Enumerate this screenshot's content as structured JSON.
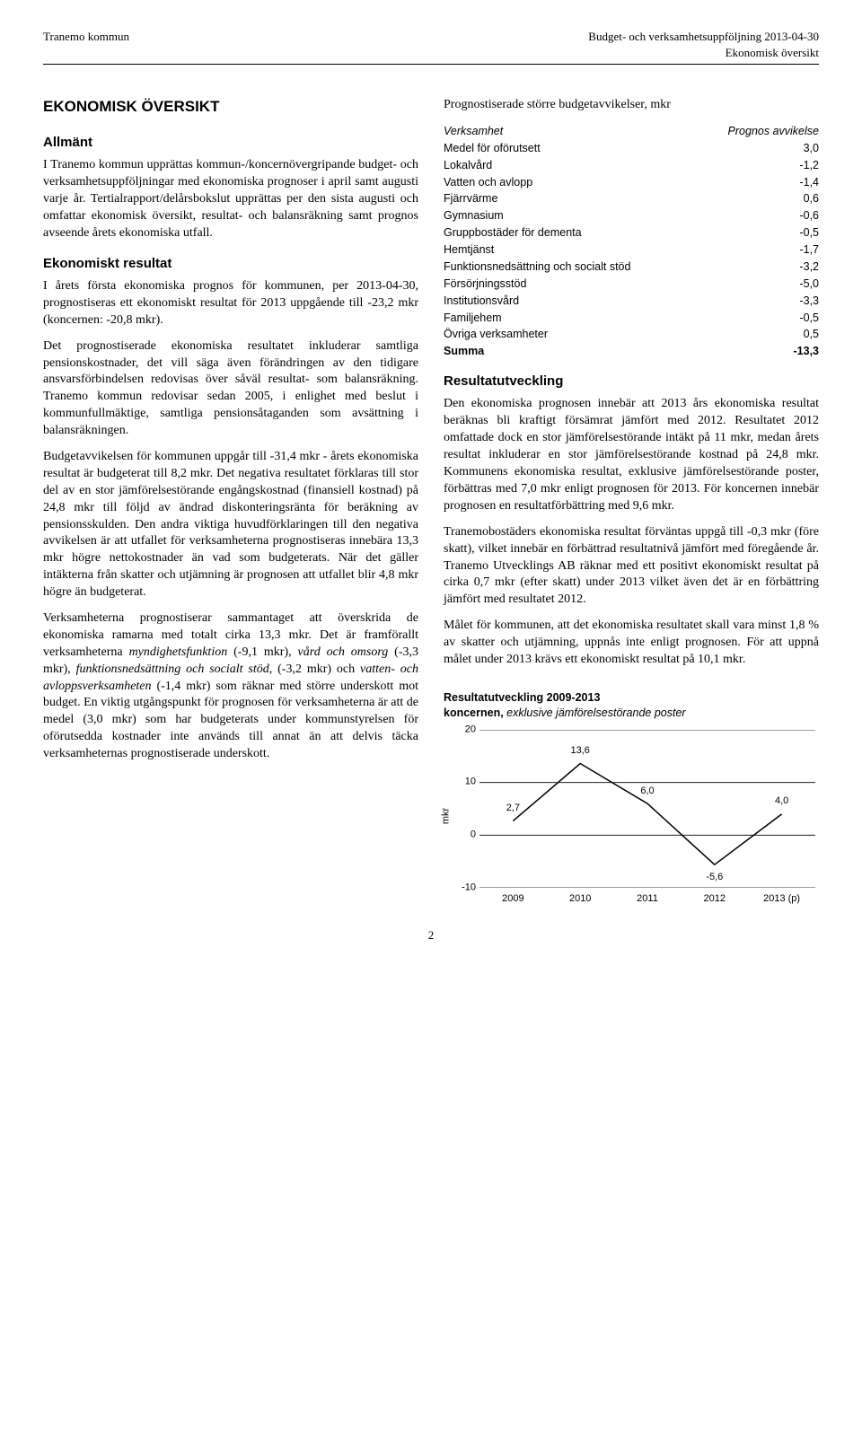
{
  "header": {
    "left": "Tranemo kommun",
    "right_line1": "Budget- och verksamhetsuppföljning 2013-04-30",
    "right_line2": "Ekonomisk översikt"
  },
  "left_col": {
    "h1": "EKONOMISK ÖVERSIKT",
    "h_allmant": "Allmänt",
    "p_allmant": "I Tranemo kommun upprättas kommun-/koncernövergripande budget- och verksamhetsuppföljningar med ekonomiska prognoser i april samt augusti varje år. Tertialrapport/delårsbokslut upprättas per den sista augusti och omfattar ekonomisk översikt, resultat- och balansräkning samt prognos avseende årets ekonomiska utfall.",
    "h_eko": "Ekonomiskt resultat",
    "p_eko1": "I årets första ekonomiska prognos för kommunen, per 2013-04-30, prognostiseras ett ekonomiskt resultat för 2013 uppgående till -23,2 mkr (koncernen: -20,8 mkr).",
    "p_eko2": "Det prognostiserade ekonomiska resultatet inkluderar samtliga pensionskostnader, det vill säga även förändringen av den tidigare ansvarsförbindelsen redovisas över såväl resultat- som balansräkning. Tranemo kommun redovisar sedan 2005, i enlighet med beslut i kommunfullmäktige, samtliga pensionsåtaganden som avsättning i balansräkningen.",
    "p_eko3": "Budgetavvikelsen för kommunen uppgår till -31,4 mkr - årets ekonomiska resultat är budgeterat till 8,2 mkr. Det negativa resultatet förklaras till stor del av en stor jämförelsestörande engångskostnad (finansiell kostnad) på 24,8 mkr till följd av ändrad diskonteringsränta för beräkning av pensionsskulden. Den andra viktiga huvudförklaringen till den negativa avvikelsen är att utfallet för verksamheterna prognostiseras innebära 13,3 mkr högre nettokostnader än vad som budgeterats. När det gäller intäkterna från skatter och utjämning är prognosen att utfallet blir 4,8 mkr högre än budgeterat.",
    "p_eko4_parts": [
      {
        "t": "Verksamheterna prognostiserar sammantaget att överskrida de ekonomiska ramarna med totalt cirka 13,3 mkr. Det är framförallt verksamheterna ",
        "i": false
      },
      {
        "t": "myndighetsfunktion",
        "i": true
      },
      {
        "t": " (-9,1 mkr), ",
        "i": false
      },
      {
        "t": "vård och omsorg",
        "i": true
      },
      {
        "t": " (-3,3 mkr), ",
        "i": false
      },
      {
        "t": "funktionsnedsättning och socialt stöd",
        "i": true
      },
      {
        "t": ", (-3,2 mkr) och ",
        "i": false
      },
      {
        "t": "vatten- och avloppsverksamheten",
        "i": true
      },
      {
        "t": " (-1,4 mkr) som räknar med större underskott mot budget. En viktig utgångspunkt för prognosen för verksamheterna är att de medel (3,0 mkr) som har budgeterats under kommunstyrelsen för oförutsedda kostnader inte används till annat än att delvis täcka verksamheternas prognostiserade underskott.",
        "i": false
      }
    ]
  },
  "right_col": {
    "h_prognos": "Prognostiserade större budgetavvikelser, mkr",
    "table": {
      "head": [
        "Verksamhet",
        "Prognos avvikelse"
      ],
      "rows": [
        [
          "Medel för oförutsett",
          "3,0"
        ],
        [
          "Lokalvård",
          "-1,2"
        ],
        [
          "Vatten och avlopp",
          "-1,4"
        ],
        [
          "Fjärrvärme",
          "0,6"
        ],
        [
          "Gymnasium",
          "-0,6"
        ],
        [
          "Gruppbostäder för dementa",
          "-0,5"
        ],
        [
          "Hemtjänst",
          "-1,7"
        ],
        [
          "Funktionsnedsättning och socialt stöd",
          "-3,2"
        ],
        [
          "Försörjningsstöd",
          "-5,0"
        ],
        [
          "Institutionsvård",
          "-3,3"
        ],
        [
          "Familjehem",
          "-0,5"
        ],
        [
          "Övriga verksamheter",
          "0,5"
        ]
      ],
      "sum": [
        "Summa",
        "-13,3"
      ]
    },
    "h_resutv": "Resultatutveckling",
    "p_res1": "Den ekonomiska prognosen innebär att 2013 års ekonomiska resultat beräknas bli kraftigt försämrat jämfört med 2012. Resultatet 2012 omfattade dock en stor jämförelsestörande intäkt på 11 mkr, medan årets resultat inkluderar en stor jämförelsestörande kostnad på 24,8 mkr. Kommunens ekonomiska resultat, exklusive jämförelsestörande poster, förbättras med 7,0 mkr enligt prognosen för 2013. För koncernen innebär prognosen en resultatförbättring med 9,6 mkr.",
    "p_res2": "Tranemobostäders ekonomiska resultat förväntas uppgå till -0,3 mkr (före skatt), vilket innebär en förbättrad resultatnivå jämfört med föregående år. Tranemo Utvecklings AB räknar med ett positivt ekonomiskt resultat på cirka 0,7 mkr (efter skatt) under 2013 vilket även det är en förbättring jämfört med resultatet 2012.",
    "p_res3": "Målet för kommunen, att det ekonomiska resultatet skall vara minst 1,8 % av skatter och utjämning, uppnås inte enligt prognosen. För att uppnå målet under 2013 krävs ett ekonomiskt resultat på 10,1 mkr."
  },
  "chart": {
    "type": "line",
    "title_bold": "Resultatutveckling 2009-2013",
    "title_line2_bold": "koncernen, ",
    "title_line2_ital": "exklusive jämförelsestörande poster",
    "x_labels": [
      "2009",
      "2010",
      "2011",
      "2012",
      "2013 (p)"
    ],
    "y_label": "mkr",
    "ylim": [
      -10,
      20
    ],
    "ytick_step": 10,
    "yticks": [
      -10,
      0,
      10,
      20
    ],
    "values": [
      2.7,
      13.6,
      6.0,
      -5.6,
      4.0
    ],
    "value_labels": [
      "2,7",
      "13,6",
      "6,0",
      "-5,6",
      "4,0"
    ],
    "line_color": "#000000",
    "line_width": 1.5,
    "grid_color": "#000000",
    "background_color": "#ffffff",
    "label_fontsize": 11,
    "marker": "none"
  },
  "page_number": "2"
}
